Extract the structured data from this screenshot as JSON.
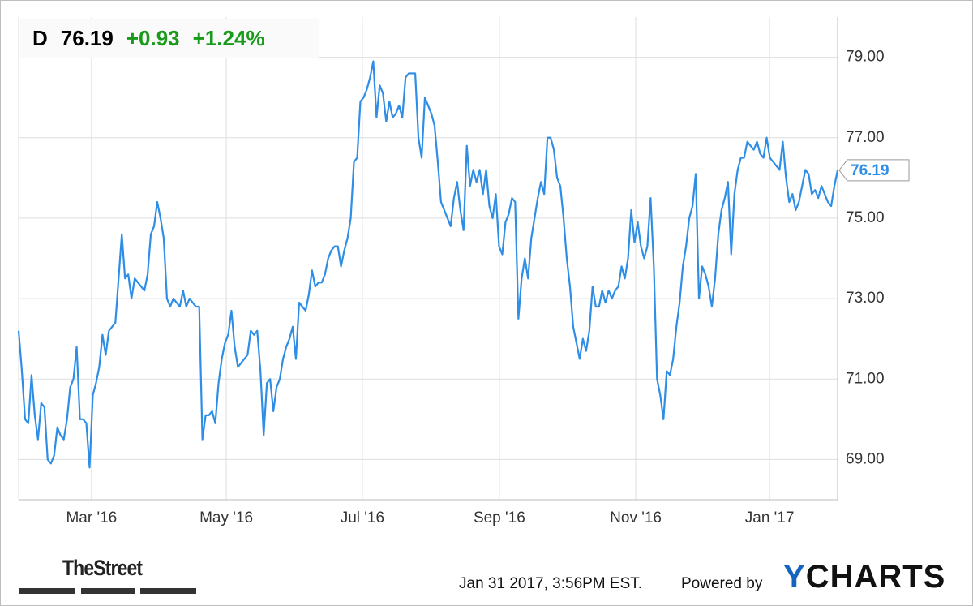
{
  "chart_data": {
    "type": "line",
    "header": {
      "symbol": "D",
      "price": 76.19,
      "change": "+0.93",
      "change_pct": "+1.24%"
    },
    "footer": {
      "source": "TheStreet",
      "timestamp": "Jan 31 2017, 3:56PM EST.",
      "powered_by": "Powered by",
      "logo": "YCHARTS"
    },
    "series": [
      {
        "name": "D",
        "color": "#2e8ee6",
        "values": [
          72.2,
          71.2,
          70.0,
          69.9,
          71.1,
          70.1,
          69.5,
          70.4,
          70.3,
          69.0,
          68.9,
          69.1,
          69.8,
          69.6,
          69.5,
          70.0,
          70.8,
          71.0,
          71.8,
          70.0,
          70.0,
          69.9,
          68.8,
          70.6,
          70.9,
          71.3,
          72.1,
          71.6,
          72.2,
          72.3,
          72.4,
          73.5,
          74.6,
          73.5,
          73.6,
          73.0,
          73.5,
          73.4,
          73.3,
          73.2,
          73.6,
          74.6,
          74.8,
          75.4,
          75.0,
          74.5,
          73.0,
          72.8,
          73.0,
          72.9,
          72.8,
          73.2,
          72.8,
          73.0,
          72.9,
          72.8,
          72.8,
          69.5,
          70.1,
          70.1,
          70.2,
          69.9,
          70.9,
          71.5,
          71.9,
          72.1,
          72.7,
          71.8,
          71.3,
          71.4,
          71.5,
          71.6,
          72.2,
          72.1,
          72.2,
          71.2,
          69.6,
          70.9,
          71.0,
          70.2,
          70.8,
          71.0,
          71.5,
          71.8,
          72.0,
          72.3,
          71.5,
          72.9,
          72.8,
          72.7,
          73.1,
          73.7,
          73.3,
          73.4,
          73.4,
          73.6,
          74.0,
          74.2,
          74.3,
          74.3,
          73.8,
          74.2,
          74.5,
          75.0,
          76.4,
          76.5,
          77.9,
          78.0,
          78.2,
          78.5,
          78.9,
          77.5,
          78.3,
          78.1,
          77.4,
          77.9,
          77.5,
          77.6,
          77.8,
          77.5,
          78.5,
          78.6,
          78.6,
          78.6,
          77.0,
          76.5,
          78.0,
          77.8,
          77.6,
          77.3,
          76.4,
          75.4,
          75.2,
          75.0,
          74.8,
          75.5,
          75.9,
          75.2,
          74.7,
          76.8,
          75.8,
          76.2,
          75.9,
          76.2,
          75.6,
          76.2,
          75.3,
          75.0,
          75.6,
          74.3,
          74.1,
          74.9,
          75.1,
          75.5,
          75.4,
          72.5,
          73.5,
          74.0,
          73.5,
          74.5,
          75.0,
          75.5,
          75.9,
          75.6,
          77.0,
          77.0,
          76.7,
          76.0,
          75.8,
          75.0,
          74.0,
          73.3,
          72.3,
          71.9,
          71.5,
          72.0,
          71.7,
          72.2,
          73.3,
          72.8,
          72.8,
          73.2,
          72.9,
          73.2,
          73.0,
          73.2,
          73.3,
          73.8,
          73.5,
          74.0,
          75.2,
          74.4,
          74.9,
          74.3,
          74.0,
          74.3,
          75.5,
          73.8,
          71.0,
          70.6,
          70.0,
          71.2,
          71.1,
          71.5,
          72.3,
          72.9,
          73.8,
          74.3,
          75.0,
          75.3,
          76.1,
          73.0,
          73.8,
          73.6,
          73.3,
          72.8,
          73.5,
          74.6,
          75.2,
          75.5,
          75.9,
          74.1,
          75.6,
          76.2,
          76.5,
          76.5,
          76.9,
          76.8,
          76.7,
          76.9,
          76.6,
          76.5,
          77.0,
          76.5,
          76.4,
          76.3,
          76.2,
          76.9,
          76.0,
          75.4,
          75.6,
          75.2,
          75.4,
          75.8,
          76.2,
          76.1,
          75.6,
          75.7,
          75.5,
          75.8,
          75.6,
          75.4,
          75.3,
          75.8,
          76.19
        ]
      }
    ],
    "xticks": [
      {
        "value": 22.6,
        "label": "Mar '16"
      },
      {
        "value": 64.4,
        "label": "May '16"
      },
      {
        "value": 106.6,
        "label": "Jul '16"
      },
      {
        "value": 149.1,
        "label": "Sep '16"
      },
      {
        "value": 191.4,
        "label": "Nov '16"
      },
      {
        "value": 232.9,
        "label": "Jan '17"
      }
    ],
    "ylim": [
      68,
      80
    ],
    "yticks": [
      {
        "value": 69,
        "label": "69.00"
      },
      {
        "value": 71,
        "label": "71.00"
      },
      {
        "value": 73,
        "label": "73.00"
      },
      {
        "value": 75,
        "label": "75.00"
      },
      {
        "value": 77,
        "label": "77.00"
      },
      {
        "value": 79,
        "label": "79.00"
      }
    ],
    "grid": true
  }
}
